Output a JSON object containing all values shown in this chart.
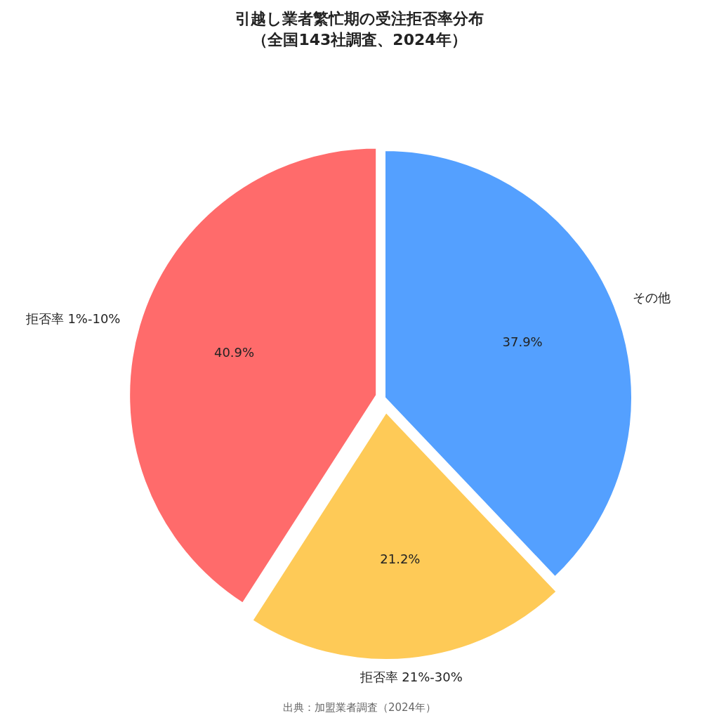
{
  "chart_data": {
    "type": "pie",
    "title": "引越し業者繁忙期の受注拒否率分布",
    "subtitle": "（全国143社調査、2024年）",
    "categories": [
      "拒否率 1%-10%",
      "拒否率 21%-30%",
      "その他"
    ],
    "values": [
      40.9,
      21.2,
      37.9
    ],
    "colors": [
      "#ff6b6b",
      "#feca57",
      "#54a0ff"
    ],
    "value_labels": [
      "40.9%",
      "21.2%",
      "37.9%"
    ],
    "annotations": [
      "出典：加盟業者調査（2024年）"
    ]
  }
}
